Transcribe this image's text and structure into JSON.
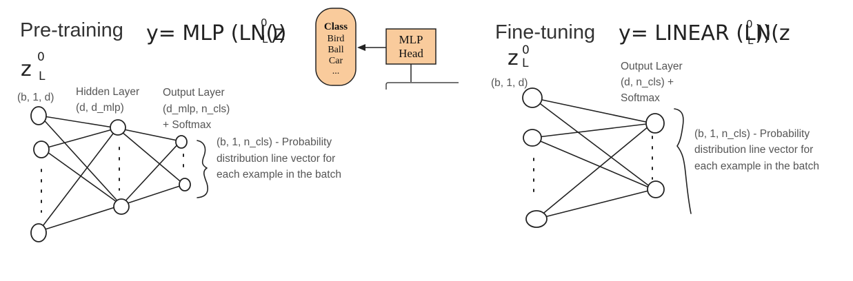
{
  "pretraining": {
    "title": "Pre-training",
    "formula": "y= MLP (LN(z",
    "formula_sup": "0",
    "formula_sub": "L",
    "formula_close": "))",
    "input_symbol": "z",
    "input_sup": "0",
    "input_sub": "L",
    "input_dims": "(b, 1, d)",
    "hidden_label": [
      "Hidden Layer",
      "(d, d_mlp)"
    ],
    "output_label": [
      "Output Layer",
      "(d_mlp, n_cls)",
      "+ Softmax"
    ],
    "output_desc": [
      "(b, 1, n_cls) - Probability",
      "distribution line vector for",
      "each example in the batch"
    ]
  },
  "snippet": {
    "class_box": [
      "Class",
      "Bird",
      "Ball",
      "Car",
      "..."
    ],
    "mlp_head": [
      "MLP",
      "Head"
    ]
  },
  "finetuning": {
    "title": "Fine-tuning",
    "formula": "y= LINEAR (LN(z",
    "formula_sup": "0",
    "formula_sub": "L",
    "formula_close": "))",
    "input_symbol": "z",
    "input_sup": "0",
    "input_sub": "L",
    "input_dims": "(b, 1, d)",
    "output_label": [
      "Output Layer",
      "(d, n_cls) +",
      "Softmax"
    ],
    "output_desc": [
      "(b, 1, n_cls) - Probability",
      "distribution line vector for",
      "each example in the batch"
    ]
  },
  "colors": {
    "class_box_fill": "#f9cb9c",
    "mlp_head_fill": "#f9cb9c",
    "ink": "#222222",
    "label_text": "#555555"
  }
}
